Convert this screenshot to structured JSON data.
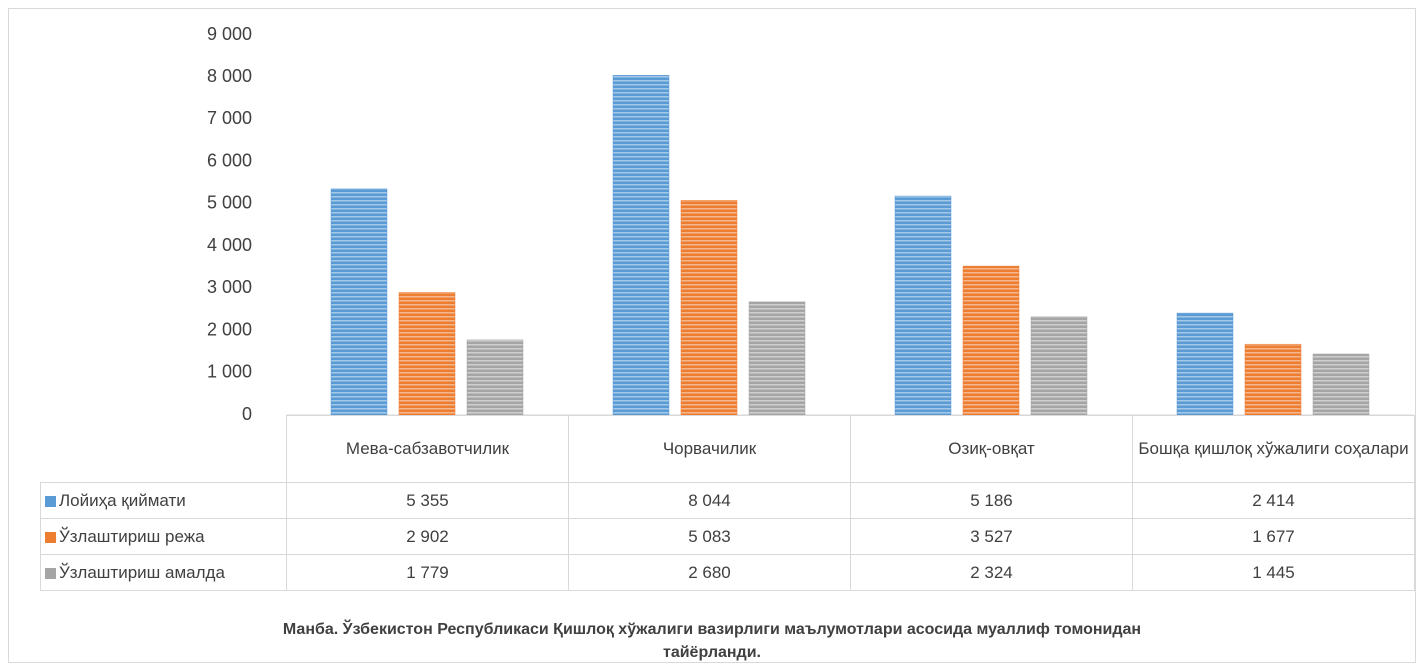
{
  "chart_data": {
    "type": "bar",
    "categories": [
      "Мева-сабзавотчилик",
      "Чорвачилик",
      "Озиқ-овқат",
      "Бошқа қишлоқ хўжалиги соҳалари"
    ],
    "series": [
      {
        "name": "Лойиҳа қиймати",
        "color": "#5b9bd5",
        "values": [
          5355,
          8044,
          5186,
          2414
        ],
        "value_labels": [
          "5 355",
          "8 044",
          "5 186",
          "2 414"
        ]
      },
      {
        "name": "Ўзлаштириш режа",
        "color": "#ed7d31",
        "values": [
          2902,
          5083,
          3527,
          1677
        ],
        "value_labels": [
          "2 902",
          "5 083",
          "3 527",
          "1 677"
        ]
      },
      {
        "name": "Ўзлаштириш амалда",
        "color": "#a5a5a5",
        "values": [
          1779,
          2680,
          2324,
          1445
        ],
        "value_labels": [
          "1 779",
          "2 680",
          "2 324",
          "1 445"
        ]
      }
    ],
    "ylim": [
      0,
      9000
    ],
    "yticks": [
      0,
      {
        "value": 1000,
        "label": "1 000"
      },
      {
        "value": 2000,
        "label": "2 000"
      },
      {
        "value": 3000,
        "label": "3 000"
      },
      {
        "value": 4000,
        "label": "4 000"
      },
      {
        "value": 5000,
        "label": "5 000"
      },
      {
        "value": 6000,
        "label": "6 000"
      },
      {
        "value": 7000,
        "label": "7 000"
      },
      {
        "value": 8000,
        "label": "8 000"
      },
      {
        "value": 9000,
        "label": "9 000"
      }
    ],
    "grid": false,
    "note": "Манба. Ўзбекистон Республикаси Қишлоқ хўжалиги вазирлиги маълумотлари асосида муаллиф томонидан тайёрланди."
  }
}
